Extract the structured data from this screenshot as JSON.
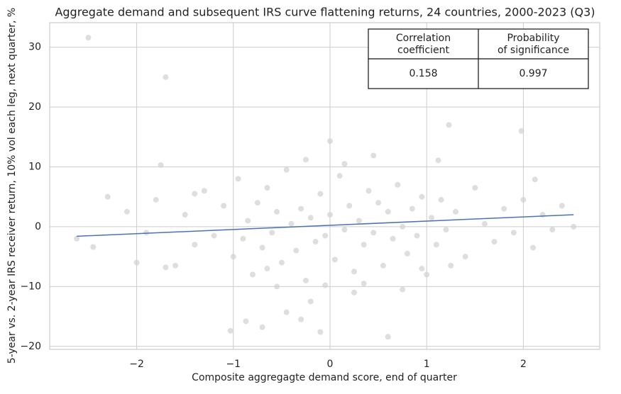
{
  "chart_data": {
    "type": "scatter",
    "title": "Aggregate demand and subsequent IRS curve flattening returns, 24 countries, 2000-2023 (Q3)",
    "x_label": "Composite aggregagte demand score, end of quarter",
    "y_label": "5-year vs. 2-year IRS receiver return, 10% vol each leg, next quarter, %",
    "xlim": [
      -2.9,
      2.79
    ],
    "ylim": [
      -20.5,
      34.1
    ],
    "xticks": [
      {
        "value": -2,
        "label": "−2"
      },
      {
        "value": -1,
        "label": "−1"
      },
      0,
      1,
      2
    ],
    "yticks": [
      {
        "value": -20,
        "label": "−20"
      },
      {
        "value": -10,
        "label": "−10"
      },
      0,
      10,
      20,
      30
    ],
    "grid": true,
    "series": [
      {
        "color": "#d3d3d3",
        "x": [
          -2.5,
          -1.7,
          1.23,
          1.98,
          -1.75,
          -1.03,
          -0.87,
          -0.7,
          -0.1,
          0.6,
          -0.45,
          -0.3,
          0.0,
          0.45,
          -0.25,
          1.12,
          2.12,
          2.52,
          -2.45,
          -2.62,
          -2.3,
          -2.1,
          -1.9,
          -1.8,
          -1.6,
          -1.5,
          -1.4,
          -1.3,
          -1.2,
          -1.1,
          -1.0,
          -0.95,
          -0.9,
          -0.85,
          -0.8,
          -0.75,
          -0.7,
          -0.65,
          -0.6,
          -0.55,
          -0.5,
          -0.45,
          -0.4,
          -0.35,
          -0.3,
          -0.25,
          -0.2,
          -0.15,
          -0.1,
          -0.05,
          0.0,
          0.05,
          0.1,
          0.15,
          0.2,
          0.25,
          0.3,
          0.35,
          0.4,
          0.45,
          0.5,
          0.55,
          0.6,
          0.65,
          0.7,
          0.75,
          0.8,
          0.85,
          0.9,
          0.95,
          1.0,
          1.05,
          1.1,
          1.15,
          1.2,
          1.3,
          1.4,
          1.5,
          1.6,
          1.7,
          1.8,
          1.9,
          2.0,
          2.1,
          2.2,
          2.3,
          2.4,
          -0.55,
          0.25,
          -0.2,
          0.35,
          -1.4,
          -2.0,
          -1.7,
          0.75,
          0.95,
          -0.05,
          0.15,
          -0.65,
          1.25
        ],
        "values": [
          31.6,
          25.0,
          17.0,
          16.0,
          10.3,
          -17.4,
          -15.8,
          -16.8,
          -17.6,
          -18.4,
          -14.3,
          -15.5,
          14.3,
          11.9,
          11.2,
          11.1,
          7.9,
          0.0,
          -3.4,
          -2.0,
          5.0,
          2.5,
          -1.0,
          4.5,
          -6.5,
          2.0,
          -3.0,
          6.0,
          -1.5,
          3.5,
          -5.0,
          8.0,
          -2.0,
          1.0,
          -8.0,
          4.0,
          -3.5,
          6.5,
          -1.0,
          2.5,
          -6.0,
          9.5,
          0.5,
          -4.0,
          3.0,
          -9.0,
          1.5,
          -2.5,
          5.5,
          -1.5,
          2.0,
          -5.5,
          8.5,
          -0.5,
          3.5,
          -7.5,
          1.0,
          -3.0,
          6.0,
          -1.0,
          4.0,
          -6.5,
          2.5,
          -2.0,
          7.0,
          0.0,
          -4.5,
          3.0,
          -1.5,
          5.0,
          -8.0,
          1.5,
          -3.0,
          4.5,
          -0.5,
          2.5,
          -5.0,
          6.5,
          0.5,
          -2.5,
          3.0,
          -1.0,
          4.5,
          -3.5,
          2.0,
          -0.5,
          3.5,
          -10.0,
          -11.0,
          -12.5,
          -9.5,
          5.5,
          -6.0,
          -6.8,
          -10.5,
          -7.0,
          -9.8,
          10.5,
          -7.0,
          -6.5
        ]
      }
    ],
    "fit_line": {
      "color": "#4c72b0",
      "x": [
        -2.62,
        2.52
      ],
      "values": [
        -1.6,
        2.0
      ]
    },
    "stats_table": {
      "header": [
        "Correlation coefficient",
        "Probability of significance"
      ],
      "row": [
        "0.158",
        "0.997"
      ]
    }
  }
}
